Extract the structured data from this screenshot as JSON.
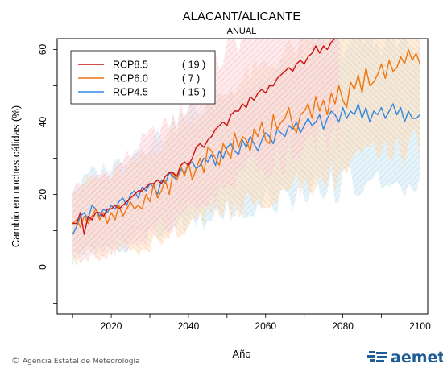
{
  "chart_data": {
    "type": "line",
    "title": "ALACANT/ALICANTE",
    "subtitle": "ANUAL",
    "xlabel": "Año",
    "ylabel": "Cambio en noches cálidas (%)",
    "xlim": [
      2006,
      2102
    ],
    "ylim": [
      -13,
      63
    ],
    "xticks": [
      2020,
      2040,
      2060,
      2080,
      2100
    ],
    "yticks": [
      0,
      20,
      40,
      60
    ],
    "grid": false,
    "legend_position": "top-left",
    "series": [
      {
        "name": "RCP8.5",
        "count": "( 19 )",
        "color": "#cc1111",
        "band_color": "#f4a6b0",
        "x_start": 2010,
        "x_end": 2079,
        "values": [
          12,
          12,
          15,
          9,
          14,
          13,
          15,
          15,
          14,
          16,
          16,
          17,
          16,
          17,
          18,
          19,
          20,
          21,
          21,
          22,
          23,
          23,
          24,
          23,
          25,
          26,
          26,
          25,
          28,
          29,
          28,
          30,
          33,
          34,
          33,
          35,
          36,
          38,
          39,
          40,
          39,
          42,
          43,
          43,
          45,
          44,
          47,
          46,
          48,
          49,
          48,
          50,
          50,
          52,
          53,
          54,
          55,
          54,
          56,
          57,
          56,
          58,
          59,
          61,
          59,
          61,
          60,
          62,
          63,
          63
        ]
      },
      {
        "name": "RCP6.0",
        "count": "(  7 )",
        "color": "#ee7711",
        "band_color": "#f8c795",
        "x_start": 2010,
        "x_end": 2100,
        "values": [
          12,
          13,
          11,
          14,
          12,
          14,
          16,
          13,
          15,
          12,
          15,
          13,
          17,
          14,
          16,
          18,
          16,
          17,
          16,
          20,
          18,
          23,
          19,
          21,
          24,
          20,
          26,
          24,
          28,
          25,
          29,
          24,
          27,
          30,
          26,
          33,
          32,
          30,
          28,
          34,
          32,
          30,
          37,
          33,
          36,
          35,
          32,
          38,
          36,
          40,
          35,
          34,
          42,
          38,
          40,
          41,
          44,
          39,
          37,
          42,
          43,
          45,
          41,
          47,
          43,
          46,
          42,
          48,
          45,
          50,
          46,
          44,
          51,
          49,
          53,
          48,
          55,
          50,
          51,
          53,
          56,
          52,
          57,
          54,
          55,
          58,
          56,
          60,
          57,
          59,
          56
        ]
      },
      {
        "name": "RCP4.5",
        "count": "( 15 )",
        "color": "#3388dd",
        "band_color": "#a8d4ea",
        "x_start": 2010,
        "x_end": 2100,
        "values": [
          9,
          11,
          14,
          15,
          13,
          17,
          16,
          14,
          16,
          15,
          17,
          16,
          18,
          19,
          17,
          20,
          21,
          19,
          22,
          21,
          23,
          22,
          20,
          24,
          23,
          26,
          25,
          24,
          27,
          26,
          28,
          29,
          27,
          28,
          30,
          29,
          31,
          28,
          32,
          30,
          33,
          34,
          32,
          31,
          35,
          33,
          36,
          34,
          32,
          35,
          37,
          36,
          34,
          38,
          37,
          36,
          39,
          38,
          40,
          37,
          39,
          41,
          39,
          40,
          42,
          38,
          41,
          43,
          42,
          40,
          44,
          41,
          43,
          42,
          45,
          41,
          44,
          40,
          43,
          42,
          44,
          41,
          43,
          45,
          42,
          44,
          40,
          43,
          41,
          41,
          42
        ]
      }
    ]
  },
  "footer": {
    "copyright_symbol": "©",
    "agency": "Agencia Estatal de Meteorología",
    "logo_text": "aemet"
  }
}
